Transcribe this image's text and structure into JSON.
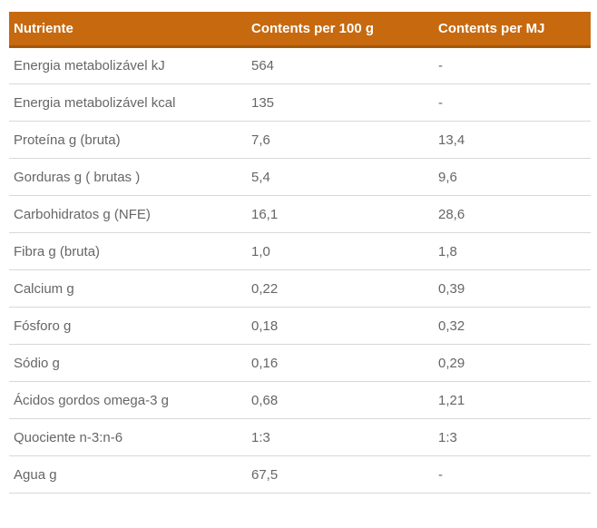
{
  "colors": {
    "header_bg": "#C7690F",
    "header_border": "#A5580A",
    "header_text": "#FFFFFF",
    "row_border": "#D8D8D8",
    "body_text": "#666666",
    "page_bg": "#FFFFFF"
  },
  "table": {
    "columns": [
      "Nutriente",
      "Contents per 100 g",
      "Contents per MJ"
    ],
    "rows": [
      {
        "nutrient": "Energia metabolizável kJ",
        "per_100g": "564",
        "per_mj": "-"
      },
      {
        "nutrient": "Energia metabolizável kcal",
        "per_100g": "135",
        "per_mj": "-"
      },
      {
        "nutrient": "Proteína g (bruta)",
        "per_100g": "7,6",
        "per_mj": "13,4"
      },
      {
        "nutrient": "Gorduras g ( brutas )",
        "per_100g": "5,4",
        "per_mj": "9,6"
      },
      {
        "nutrient": "Carbohidratos g (NFE)",
        "per_100g": "16,1",
        "per_mj": "28,6"
      },
      {
        "nutrient": "Fibra g (bruta)",
        "per_100g": "1,0",
        "per_mj": "1,8"
      },
      {
        "nutrient": "Calcium g",
        "per_100g": "0,22",
        "per_mj": "0,39"
      },
      {
        "nutrient": "Fósforo g",
        "per_100g": "0,18",
        "per_mj": "0,32"
      },
      {
        "nutrient": "Sódio g",
        "per_100g": "0,16",
        "per_mj": "0,29"
      },
      {
        "nutrient": "Ácidos gordos omega-3 g",
        "per_100g": "0,68",
        "per_mj": "1,21"
      },
      {
        "nutrient": "Quociente n-3:n-6",
        "per_100g": "1:3",
        "per_mj": "1:3"
      },
      {
        "nutrient": "Agua g",
        "per_100g": "67,5",
        "per_mj": "-"
      }
    ]
  },
  "chart_data": {
    "type": "table",
    "title": "",
    "columns": [
      "Nutriente",
      "Contents per 100 g",
      "Contents per MJ"
    ],
    "rows": [
      [
        "Energia metabolizável kJ",
        "564",
        "-"
      ],
      [
        "Energia metabolizável kcal",
        "135",
        "-"
      ],
      [
        "Proteína g (bruta)",
        "7,6",
        "13,4"
      ],
      [
        "Gorduras g ( brutas )",
        "5,4",
        "9,6"
      ],
      [
        "Carbohidratos g (NFE)",
        "16,1",
        "28,6"
      ],
      [
        "Fibra g (bruta)",
        "1,0",
        "1,8"
      ],
      [
        "Calcium g",
        "0,22",
        "0,39"
      ],
      [
        "Fósforo g",
        "0,18",
        "0,32"
      ],
      [
        "Sódio g",
        "0,16",
        "0,29"
      ],
      [
        "Ácidos gordos omega-3 g",
        "0,68",
        "1,21"
      ],
      [
        "Quociente n-3:n-6",
        "1:3",
        "1:3"
      ],
      [
        "Agua g",
        "67,5",
        "-"
      ]
    ]
  }
}
